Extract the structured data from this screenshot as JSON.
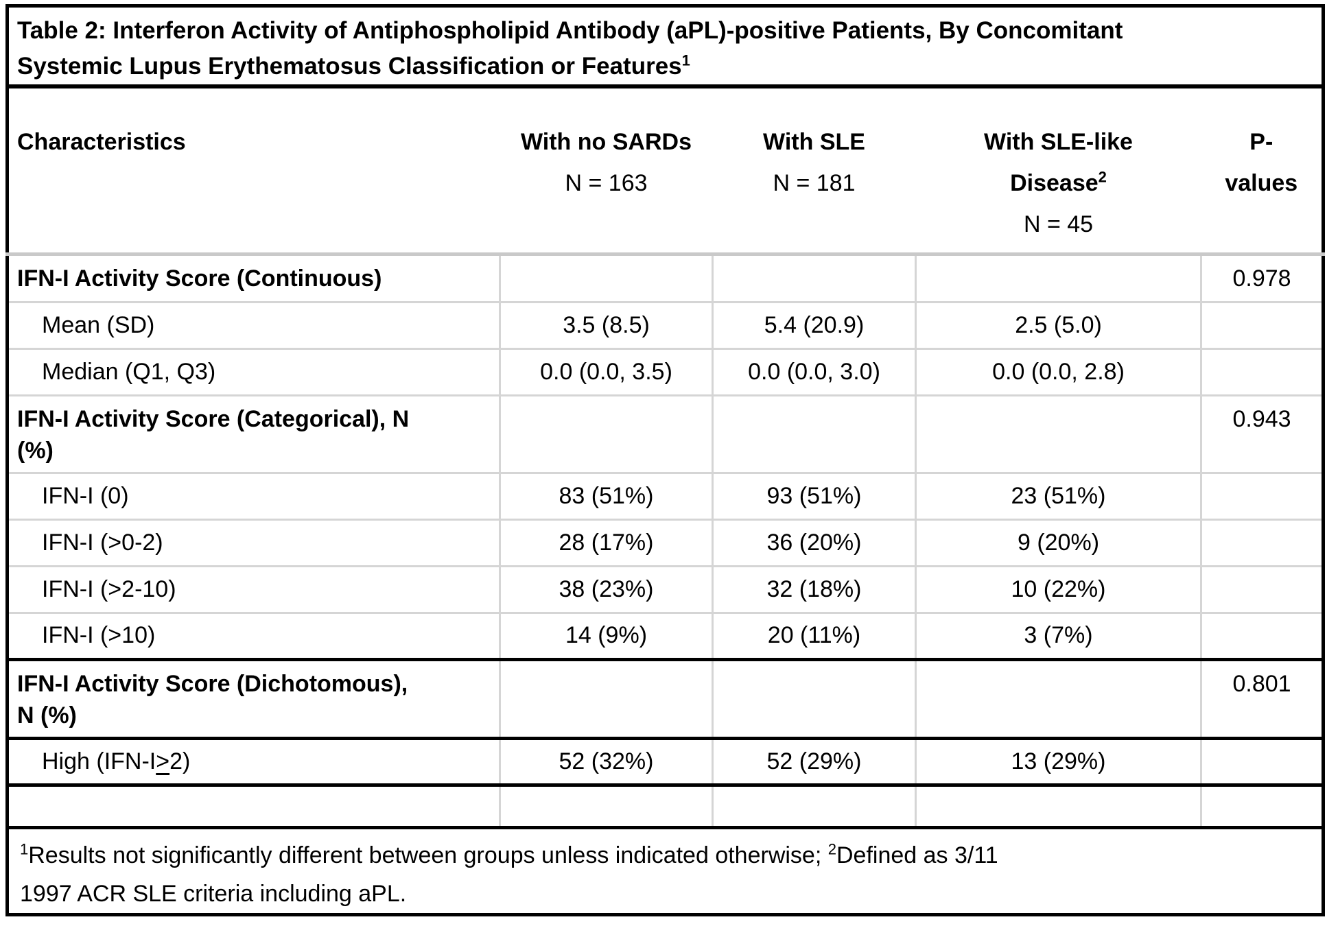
{
  "colors": {
    "text": "#000000",
    "background": "#ffffff",
    "border_strong": "#000000",
    "border_light": "#d5d5d5",
    "header_rule": "#c9c9c9"
  },
  "title": {
    "line1": "Table 2: Interferon Activity of Antiphospholipid Antibody (aPL)-positive Patients, By Concomitant",
    "line2": "Systemic Lupus Erythematosus Classification or Features",
    "superscript": "1"
  },
  "header": {
    "characteristics": {
      "label": "Characteristics"
    },
    "col2": {
      "label": "With no SARDs",
      "n": "N = 163"
    },
    "col3": {
      "label": "With SLE",
      "n": "N = 181"
    },
    "col4": {
      "label_line1": "With SLE-like",
      "label_line2": "Disease",
      "superscript": "2",
      "n": "N = 45"
    },
    "col5": {
      "label_line1": "P-",
      "label_line2": "values"
    }
  },
  "rows": [
    {
      "kind": "section",
      "label": "IFN-I Activity Score (Continuous)",
      "values": [
        "",
        "",
        ""
      ],
      "p": "0.978"
    },
    {
      "kind": "sub",
      "label": "Mean (SD)",
      "values": [
        "3.5 (8.5)",
        "5.4 (20.9)",
        "2.5 (5.0)"
      ],
      "p": ""
    },
    {
      "kind": "sub",
      "label": "Median (Q1, Q3)",
      "values": [
        "0.0 (0.0, 3.5)",
        "0.0 (0.0, 3.0)",
        "0.0 (0.0, 2.8)"
      ],
      "p": ""
    },
    {
      "kind": "section",
      "label": "IFN-I Activity Score (Categorical), N",
      "label2": "(%)",
      "values": [
        "",
        "",
        ""
      ],
      "p": "0.943"
    },
    {
      "kind": "sub",
      "label": "IFN-I (0)",
      "values": [
        "83 (51%)",
        "93 (51%)",
        "23 (51%)"
      ],
      "p": ""
    },
    {
      "kind": "sub",
      "label": "IFN-I (>0-2)",
      "values": [
        "28 (17%)",
        "36 (20%)",
        "9 (20%)"
      ],
      "p": ""
    },
    {
      "kind": "sub",
      "label": "IFN-I (>2-10)",
      "values": [
        "38 (23%)",
        "32 (18%)",
        "10 (22%)"
      ],
      "p": ""
    },
    {
      "kind": "sub",
      "label": "IFN-I (>10)",
      "values": [
        "14 (9%)",
        "20 (11%)",
        "3 (7%)"
      ],
      "p": ""
    },
    {
      "kind": "section",
      "label": "IFN-I Activity Score (Dichotomous),",
      "label2": "N (%)",
      "values": [
        "",
        "",
        ""
      ],
      "p": "0.801",
      "divider_top": "strong"
    },
    {
      "kind": "sub",
      "label_pre": "High (IFN-I",
      "label_underlined": ">",
      "label_post": "2)",
      "values": [
        "52 (32%)",
        "52 (29%)",
        "13 (29%)"
      ],
      "p": "",
      "divider_top": "strong",
      "divider_bottom": "strong"
    },
    {
      "kind": "empty",
      "values": [
        "",
        "",
        ""
      ],
      "p": "",
      "divider_bottom": "strong"
    }
  ],
  "footnote": {
    "superscript1": "1",
    "part1": "Results not significantly different between groups unless indicated otherwise; ",
    "superscript2": "2",
    "part2": "Defined as 3/11",
    "line2": "1997 ACR SLE criteria including aPL."
  }
}
